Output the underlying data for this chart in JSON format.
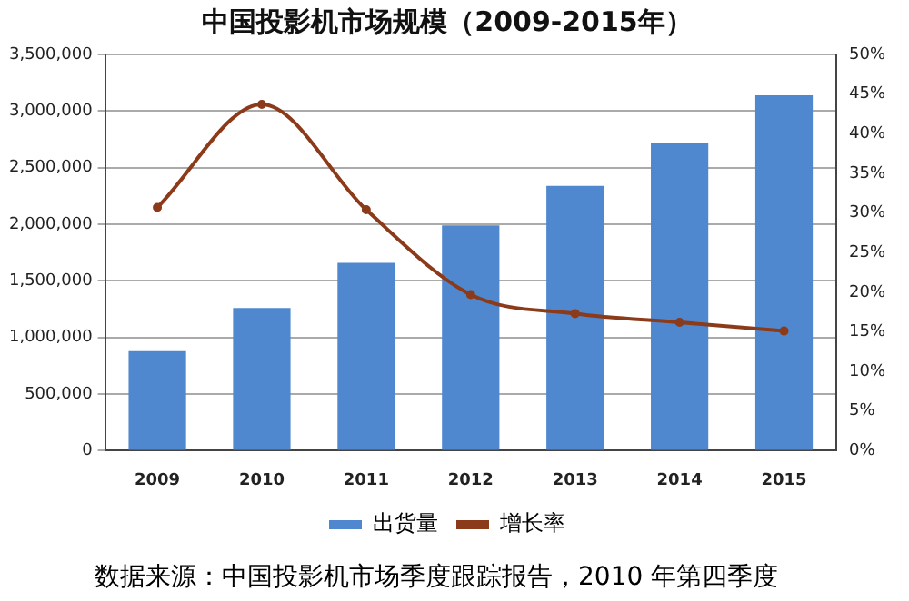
{
  "chart_data": {
    "type": "bar",
    "title": "中国投影机市场规模（2009-2015年）",
    "categories": [
      "2009",
      "2010",
      "2011",
      "2012",
      "2013",
      "2014",
      "2015"
    ],
    "series": [
      {
        "name": "出货量",
        "color": "#4f88cf",
        "values": [
          880000,
          1260000,
          1660000,
          1990000,
          2340000,
          2720000,
          3140000
        ]
      },
      {
        "name": "增长率",
        "type": "line",
        "axis": "y2",
        "color": "#8b3a1a",
        "marker": "circle",
        "values": [
          30.7,
          43.7,
          30.4,
          19.7,
          17.3,
          16.2,
          15.1
        ]
      }
    ],
    "ylim": [
      0,
      3500000
    ],
    "yticks": [
      {
        "value": 0,
        "label": "0"
      },
      {
        "value": 500000,
        "label": "500,000"
      },
      {
        "value": 1000000,
        "label": "1,000,000"
      },
      {
        "value": 1500000,
        "label": "1,500,000"
      },
      {
        "value": 2000000,
        "label": "2,000,000"
      },
      {
        "value": 2500000,
        "label": "2,500,000"
      },
      {
        "value": 3000000,
        "label": "3,000,000"
      },
      {
        "value": 3500000,
        "label": "3,500,000"
      }
    ],
    "y2lim": [
      0,
      50
    ],
    "y2ticks": [
      {
        "value": 0,
        "label": "0%"
      },
      {
        "value": 5,
        "label": "5%"
      },
      {
        "value": 10,
        "label": "10%"
      },
      {
        "value": 15,
        "label": "15%"
      },
      {
        "value": 20,
        "label": "20%"
      },
      {
        "value": 25,
        "label": "25%"
      },
      {
        "value": 30,
        "label": "30%"
      },
      {
        "value": 35,
        "label": "35%"
      },
      {
        "value": 40,
        "label": "40%"
      },
      {
        "value": 45,
        "label": "45%"
      },
      {
        "value": 50,
        "label": "50%"
      }
    ],
    "grid": "y",
    "legend": "bottom",
    "annotations": [
      "数据来源：中国投影机市场季度跟踪报告，2010 年第四季度"
    ]
  }
}
